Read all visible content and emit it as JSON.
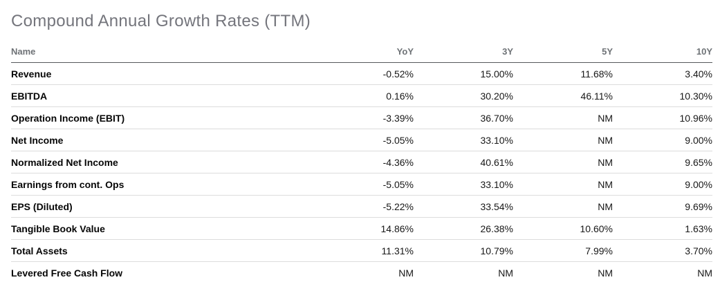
{
  "title": "Compound Annual Growth Rates (TTM)",
  "colors": {
    "title_gray": "#74757c",
    "header_gray": "#6e7276",
    "header_divider": "#55585b",
    "row_divider": "#dcdcdc",
    "text_black": "#171717"
  },
  "table": {
    "columns": [
      "Name",
      "YoY",
      "3Y",
      "5Y",
      "10Y"
    ],
    "rows": [
      {
        "label": "Revenue",
        "values": [
          "-0.52%",
          "15.00%",
          "11.68%",
          "3.40%"
        ]
      },
      {
        "label": "EBITDA",
        "values": [
          "0.16%",
          "30.20%",
          "46.11%",
          "10.30%"
        ]
      },
      {
        "label": "Operation Income (EBIT)",
        "values": [
          "-3.39%",
          "36.70%",
          "NM",
          "10.96%"
        ]
      },
      {
        "label": "Net Income",
        "values": [
          "-5.05%",
          "33.10%",
          "NM",
          "9.00%"
        ]
      },
      {
        "label": "Normalized Net Income",
        "values": [
          "-4.36%",
          "40.61%",
          "NM",
          "9.65%"
        ]
      },
      {
        "label": "Earnings from cont. Ops",
        "values": [
          "-5.05%",
          "33.10%",
          "NM",
          "9.00%"
        ]
      },
      {
        "label": "EPS (Diluted)",
        "values": [
          "-5.22%",
          "33.54%",
          "NM",
          "9.69%"
        ]
      },
      {
        "label": "Tangible Book Value",
        "values": [
          "14.86%",
          "26.38%",
          "10.60%",
          "1.63%"
        ]
      },
      {
        "label": "Total Assets",
        "values": [
          "11.31%",
          "10.79%",
          "7.99%",
          "3.70%"
        ]
      },
      {
        "label": "Levered Free Cash Flow",
        "values": [
          "NM",
          "NM",
          "NM",
          "NM"
        ]
      }
    ]
  }
}
